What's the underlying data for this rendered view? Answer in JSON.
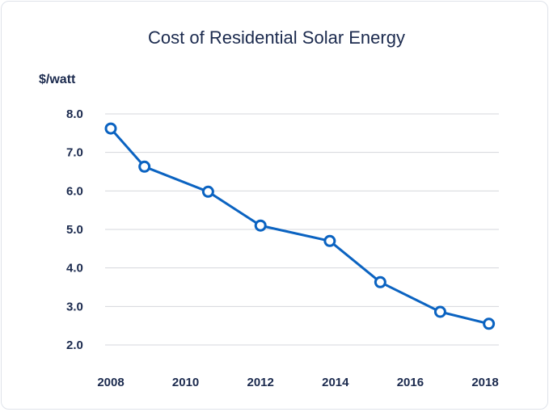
{
  "chart_data": {
    "type": "line",
    "title": "Cost of Residential Solar Energy",
    "xlabel": "",
    "ylabel": "$/watt",
    "x_ticks": [
      "2008",
      "2010",
      "2012",
      "2014",
      "2016",
      "2018"
    ],
    "y_ticks": [
      "8.0",
      "7.0",
      "6.0",
      "5.0",
      "4.0",
      "3.0",
      "2.0"
    ],
    "xlim": [
      2008,
      2018
    ],
    "ylim": [
      2.0,
      8.0
    ],
    "grid": "horizontal",
    "series": [
      {
        "x": [
          2008,
          2008.9,
          2010.6,
          2012,
          2013.85,
          2015.2,
          2016.8,
          2018.1
        ],
        "y": [
          7.62,
          6.63,
          5.98,
          5.1,
          4.7,
          3.63,
          2.86,
          2.55
        ],
        "color": "#0b63c1"
      }
    ]
  }
}
